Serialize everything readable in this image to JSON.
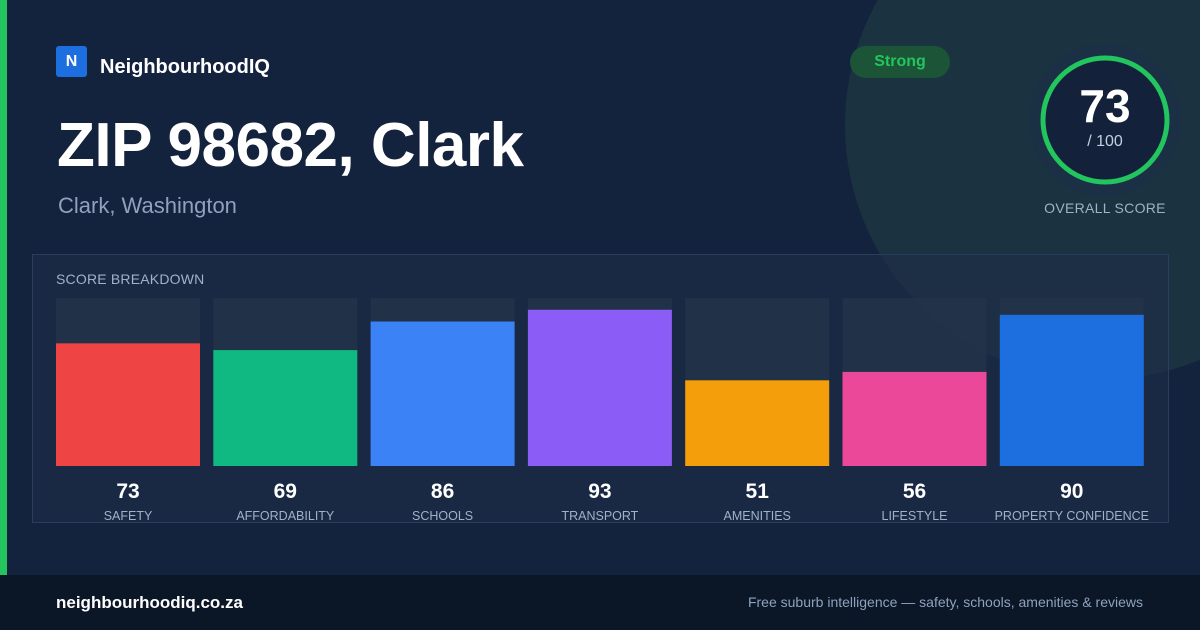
{
  "brand": {
    "logo_letter": "N",
    "name": "NeighbourhoodIQ"
  },
  "header": {
    "title": "ZIP 98682, Clark",
    "subtitle": "Clark, Washington"
  },
  "rating_badge": "Strong",
  "overall_score": {
    "value": "73",
    "max_label": "/ 100",
    "label": "OVERALL SCORE",
    "fraction": 0.73
  },
  "breakdown_title": "SCORE BREAKDOWN",
  "colors": {
    "accent": "#22c55e",
    "background": "#14233d",
    "track": "#233249"
  },
  "chart_data": {
    "type": "bar",
    "categories": [
      "SAFETY",
      "AFFORDABILITY",
      "SCHOOLS",
      "TRANSPORT",
      "AMENITIES",
      "LIFESTYLE",
      "PROPERTY CONFIDENCE"
    ],
    "values": [
      73,
      69,
      86,
      93,
      51,
      56,
      90
    ],
    "colors": [
      "#ef4444",
      "#10b981",
      "#3b82f6",
      "#8b5cf6",
      "#f59e0b",
      "#ec4899",
      "#1d6fe0"
    ],
    "ylim": [
      0,
      100
    ],
    "grid": false,
    "title": "SCORE BREAKDOWN"
  },
  "footer": {
    "url": "neighbourhoodiq.co.za",
    "tagline": "Free suburb intelligence — safety, schools, amenities & reviews"
  }
}
